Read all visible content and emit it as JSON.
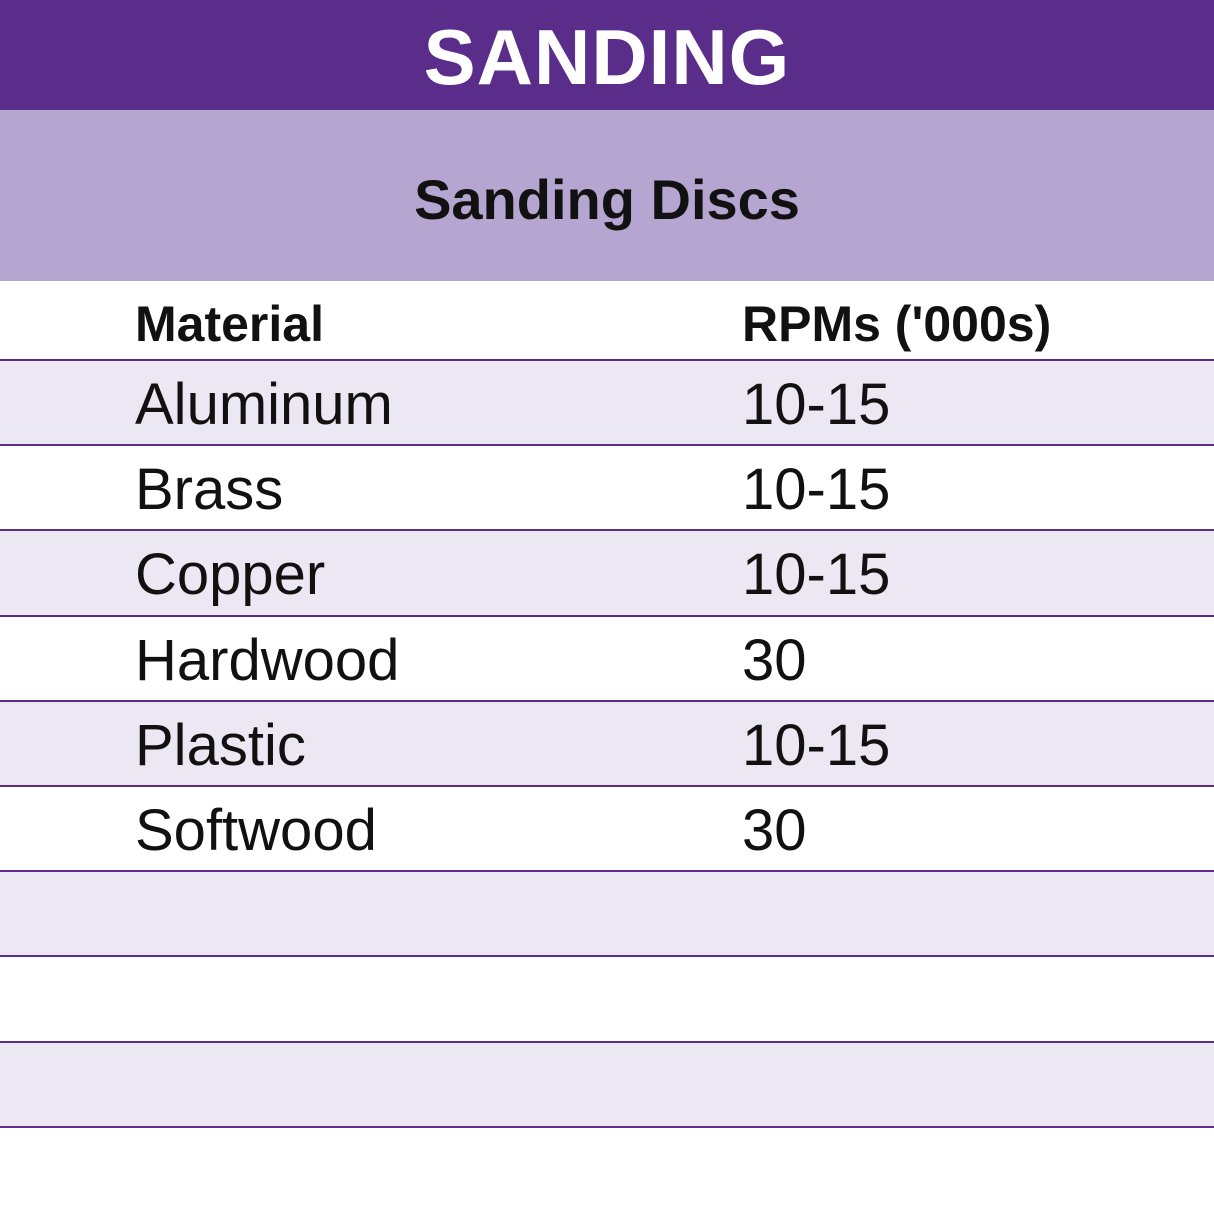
{
  "header": {
    "title": "SANDING",
    "subtitle": "Sanding Discs"
  },
  "table": {
    "columns": [
      "Material",
      "RPMs ('000s)"
    ],
    "rows": [
      [
        "Aluminum",
        "10-15"
      ],
      [
        "Brass",
        "10-15"
      ],
      [
        "Copper",
        "10-15"
      ],
      [
        "Hardwood",
        "30"
      ],
      [
        "Plastic",
        "10-15"
      ],
      [
        "Softwood",
        "30"
      ]
    ]
  }
}
